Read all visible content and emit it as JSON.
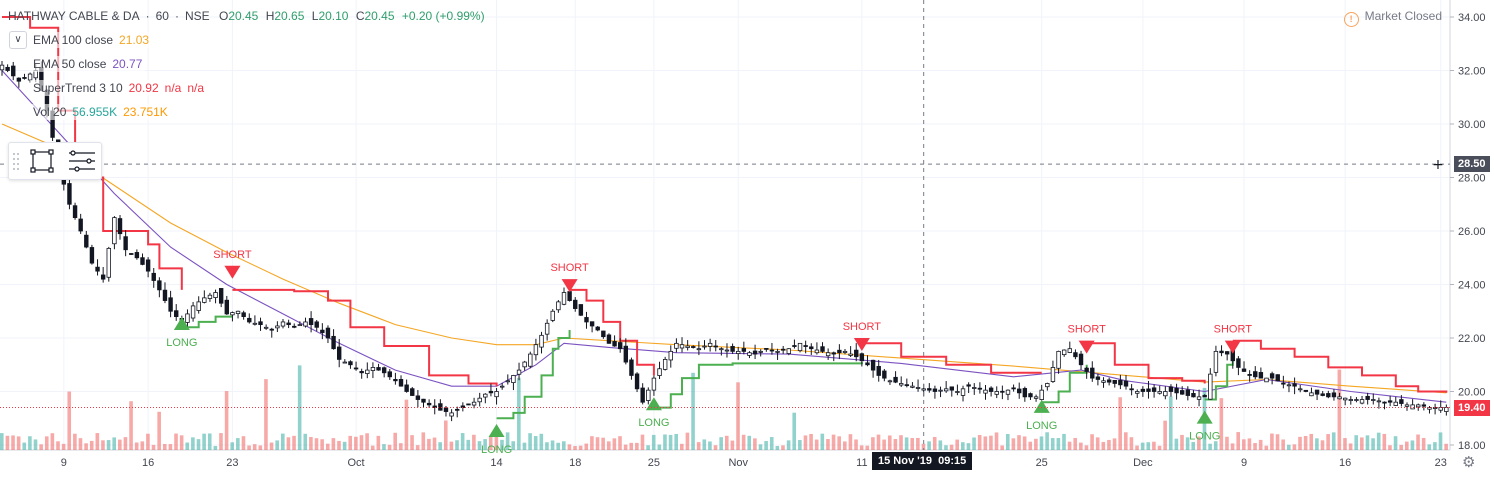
{
  "header": {
    "symbol": "HATHWAY CABLE & DA",
    "interval": "60",
    "exchange": "NSE",
    "separator": "·",
    "open_label": "O",
    "open": "20.45",
    "high_label": "H",
    "high": "20.65",
    "low_label": "L",
    "low": "20.10",
    "close_label": "C",
    "close": "20.45",
    "change": "+0.20 (+0.99%)",
    "market_status": "Market Closed",
    "market_icon": "!"
  },
  "legend": {
    "ema100": {
      "label": "EMA 100 close",
      "value": "21.03",
      "color": "#f5a623"
    },
    "ema50": {
      "label": "EMA 50 close",
      "value": "20.77",
      "color": "#7b52c1"
    },
    "supertrend": {
      "label": "SuperTrend 3 10",
      "value": "20.92",
      "extra1": "n/a",
      "extra2": "n/a",
      "color": "#f23645"
    },
    "volume": {
      "label": "Vol 20",
      "value": "56.955K",
      "ma": "23.751K",
      "value_color": "#26a69a",
      "ma_color": "#ff9800"
    }
  },
  "price_tags": {
    "crosshair": "28.50",
    "last": "19.40"
  },
  "crosshair_date": "15 Nov '19",
  "crosshair_time": "09:15",
  "colors": {
    "up": "#26a69a",
    "down": "#ef5350",
    "candle_body": "#000000",
    "supertrend_up": "#4caf50",
    "supertrend_down": "#f23645",
    "ema100": "#f5a623",
    "ema50": "#7b52c1",
    "last_price": "#f23645",
    "crosshair_tag": "#4a4e5a"
  },
  "chart_data": {
    "type": "line",
    "y_axis": {
      "min": 18,
      "max": 34,
      "ticks": [
        "18.00",
        "20.00",
        "22.00",
        "24.00",
        "26.00",
        "28.00",
        "30.00",
        "32.00",
        "34.00"
      ]
    },
    "x_ticks": [
      {
        "label": "9",
        "i": 11
      },
      {
        "label": "16",
        "i": 26
      },
      {
        "label": "23",
        "i": 41
      },
      {
        "label": "Oct",
        "i": 63
      },
      {
        "label": "14",
        "i": 88
      },
      {
        "label": "18",
        "i": 102
      },
      {
        "label": "25",
        "i": 116
      },
      {
        "label": "Nov",
        "i": 131
      },
      {
        "label": "11",
        "i": 153
      },
      {
        "label": "25",
        "i": 185
      },
      {
        "label": "Dec",
        "i": 203
      },
      {
        "label": "9",
        "i": 221
      },
      {
        "label": "16",
        "i": 239
      },
      {
        "label": "23",
        "i": 256
      }
    ],
    "bars": 258,
    "close_path": [
      [
        0,
        32.2
      ],
      [
        3,
        31.6
      ],
      [
        6,
        32.0
      ],
      [
        8,
        30.5
      ],
      [
        10,
        28.5
      ],
      [
        12,
        27.0
      ],
      [
        14,
        26.0
      ],
      [
        16,
        24.8
      ],
      [
        18,
        24.2
      ],
      [
        20,
        26.5
      ],
      [
        22,
        25.3
      ],
      [
        24,
        25.0
      ],
      [
        26,
        24.5
      ],
      [
        28,
        23.8
      ],
      [
        30,
        23.0
      ],
      [
        32,
        22.6
      ],
      [
        34,
        23.2
      ],
      [
        36,
        23.5
      ],
      [
        38,
        23.7
      ],
      [
        40,
        22.9
      ],
      [
        42,
        23.0
      ],
      [
        44,
        22.6
      ],
      [
        46,
        22.5
      ],
      [
        48,
        22.3
      ],
      [
        50,
        22.6
      ],
      [
        52,
        22.4
      ],
      [
        54,
        22.6
      ],
      [
        56,
        22.4
      ],
      [
        58,
        22.0
      ],
      [
        60,
        21.2
      ],
      [
        62,
        21.0
      ],
      [
        64,
        20.7
      ],
      [
        66,
        20.9
      ],
      [
        68,
        20.7
      ],
      [
        70,
        20.4
      ],
      [
        72,
        20.0
      ],
      [
        74,
        19.7
      ],
      [
        76,
        19.5
      ],
      [
        78,
        19.3
      ],
      [
        80,
        19.2
      ],
      [
        82,
        19.4
      ],
      [
        84,
        19.6
      ],
      [
        86,
        19.9
      ],
      [
        88,
        20.0
      ],
      [
        90,
        20.4
      ],
      [
        92,
        20.8
      ],
      [
        94,
        21.4
      ],
      [
        96,
        22.1
      ],
      [
        98,
        23.0
      ],
      [
        100,
        23.7
      ],
      [
        102,
        23.1
      ],
      [
        104,
        22.6
      ],
      [
        106,
        22.3
      ],
      [
        108,
        21.8
      ],
      [
        110,
        21.6
      ],
      [
        112,
        20.6
      ],
      [
        114,
        19.6
      ],
      [
        116,
        20.5
      ],
      [
        118,
        21.2
      ],
      [
        120,
        21.8
      ],
      [
        122,
        21.7
      ],
      [
        124,
        21.6
      ],
      [
        126,
        21.8
      ],
      [
        128,
        21.6
      ],
      [
        130,
        21.5
      ],
      [
        132,
        21.5
      ],
      [
        134,
        21.4
      ],
      [
        136,
        21.6
      ],
      [
        138,
        21.5
      ],
      [
        140,
        21.6
      ],
      [
        142,
        21.8
      ],
      [
        144,
        21.6
      ],
      [
        146,
        21.5
      ],
      [
        148,
        21.4
      ],
      [
        150,
        21.5
      ],
      [
        152,
        21.3
      ],
      [
        154,
        21.0
      ],
      [
        156,
        20.6
      ],
      [
        158,
        20.4
      ],
      [
        160,
        20.3
      ],
      [
        162,
        20.2
      ],
      [
        164,
        20.1
      ],
      [
        166,
        20.0
      ],
      [
        168,
        20.1
      ],
      [
        170,
        20.0
      ],
      [
        172,
        20.2
      ],
      [
        174,
        20.1
      ],
      [
        176,
        20.0
      ],
      [
        178,
        20.0
      ],
      [
        180,
        20.1
      ],
      [
        182,
        19.8
      ],
      [
        184,
        19.8
      ],
      [
        186,
        20.3
      ],
      [
        188,
        21.5
      ],
      [
        190,
        21.6
      ],
      [
        192,
        21.0
      ],
      [
        194,
        20.5
      ],
      [
        196,
        20.4
      ],
      [
        198,
        20.3
      ],
      [
        200,
        20.2
      ],
      [
        202,
        20.0
      ],
      [
        204,
        20.0
      ],
      [
        206,
        20.0
      ],
      [
        208,
        20.0
      ],
      [
        210,
        19.9
      ],
      [
        212,
        19.8
      ],
      [
        214,
        19.8
      ],
      [
        216,
        21.5
      ],
      [
        218,
        21.4
      ],
      [
        220,
        20.9
      ],
      [
        222,
        20.6
      ],
      [
        224,
        20.5
      ],
      [
        226,
        20.5
      ],
      [
        228,
        20.3
      ],
      [
        230,
        20.2
      ],
      [
        232,
        20.0
      ],
      [
        234,
        19.9
      ],
      [
        236,
        19.8
      ],
      [
        238,
        19.8
      ],
      [
        240,
        19.7
      ],
      [
        242,
        19.7
      ],
      [
        244,
        19.7
      ],
      [
        246,
        19.6
      ],
      [
        248,
        19.6
      ],
      [
        250,
        19.5
      ],
      [
        252,
        19.5
      ],
      [
        254,
        19.4
      ],
      [
        257,
        19.4
      ]
    ],
    "ema100_path": [
      [
        0,
        30.0
      ],
      [
        10,
        29.1
      ],
      [
        20,
        27.7
      ],
      [
        30,
        26.3
      ],
      [
        40,
        25.2
      ],
      [
        50,
        24.2
      ],
      [
        60,
        23.3
      ],
      [
        70,
        22.5
      ],
      [
        80,
        22.0
      ],
      [
        88,
        21.75
      ],
      [
        95,
        21.75
      ],
      [
        100,
        22.0
      ],
      [
        108,
        21.9
      ],
      [
        120,
        21.75
      ],
      [
        140,
        21.55
      ],
      [
        160,
        21.25
      ],
      [
        180,
        20.95
      ],
      [
        200,
        20.6
      ],
      [
        214,
        20.35
      ],
      [
        225,
        20.45
      ],
      [
        240,
        20.2
      ],
      [
        257,
        19.95
      ]
    ],
    "ema50_path": [
      [
        0,
        32.0
      ],
      [
        10,
        29.7
      ],
      [
        20,
        27.4
      ],
      [
        30,
        25.4
      ],
      [
        40,
        24.0
      ],
      [
        50,
        22.9
      ],
      [
        60,
        21.8
      ],
      [
        70,
        20.8
      ],
      [
        80,
        20.2
      ],
      [
        88,
        20.2
      ],
      [
        95,
        21.0
      ],
      [
        100,
        21.8
      ],
      [
        108,
        21.65
      ],
      [
        120,
        21.45
      ],
      [
        140,
        21.4
      ],
      [
        160,
        21.05
      ],
      [
        180,
        20.55
      ],
      [
        192,
        20.8
      ],
      [
        200,
        20.4
      ],
      [
        214,
        20.0
      ],
      [
        225,
        20.45
      ],
      [
        240,
        20.0
      ],
      [
        257,
        19.6
      ]
    ],
    "supertrend_segments": [
      {
        "trend": "down",
        "points": [
          [
            0,
            34.0
          ],
          [
            5,
            33.6
          ],
          [
            10,
            30.5
          ],
          [
            13,
            28.0
          ],
          [
            18,
            26.0
          ],
          [
            21,
            26.0
          ],
          [
            26,
            25.5
          ],
          [
            28,
            24.6
          ],
          [
            32,
            23.8
          ]
        ]
      },
      {
        "trend": "up",
        "points": [
          [
            32,
            22.4
          ],
          [
            35,
            22.6
          ],
          [
            38,
            22.8
          ],
          [
            41,
            22.8
          ]
        ]
      },
      {
        "trend": "down",
        "points": [
          [
            41,
            23.8
          ],
          [
            52,
            23.75
          ],
          [
            58,
            23.4
          ],
          [
            62,
            22.4
          ],
          [
            68,
            21.7
          ],
          [
            76,
            20.6
          ],
          [
            83,
            20.3
          ],
          [
            88,
            20.2
          ]
        ]
      },
      {
        "trend": "up",
        "points": [
          [
            88,
            19.0
          ],
          [
            91,
            19.2
          ],
          [
            93,
            19.8
          ],
          [
            96,
            20.6
          ],
          [
            98,
            21.6
          ],
          [
            99,
            22.0
          ],
          [
            101,
            22.3
          ]
        ]
      },
      {
        "trend": "down",
        "points": [
          [
            101,
            23.8
          ],
          [
            104,
            23.4
          ],
          [
            107,
            22.6
          ],
          [
            110,
            21.9
          ],
          [
            113,
            21.0
          ],
          [
            116,
            20.6
          ]
        ]
      },
      {
        "trend": "up",
        "points": [
          [
            116,
            19.4
          ],
          [
            119,
            19.9
          ],
          [
            121,
            20.5
          ],
          [
            124,
            21.0
          ],
          [
            130,
            21.05
          ],
          [
            140,
            21.05
          ],
          [
            150,
            21.05
          ],
          [
            153,
            21.1
          ]
        ]
      },
      {
        "trend": "down",
        "points": [
          [
            153,
            21.8
          ],
          [
            160,
            21.3
          ],
          [
            168,
            21.0
          ],
          [
            176,
            20.7
          ],
          [
            185,
            20.7
          ]
        ]
      },
      {
        "trend": "up",
        "points": [
          [
            185,
            19.6
          ],
          [
            188,
            20.0
          ],
          [
            190,
            20.7
          ],
          [
            193,
            21.0
          ]
        ]
      },
      {
        "trend": "down",
        "points": [
          [
            193,
            21.8
          ],
          [
            198,
            21.0
          ],
          [
            204,
            20.5
          ],
          [
            210,
            20.4
          ],
          [
            214,
            20.3
          ]
        ]
      },
      {
        "trend": "up",
        "points": [
          [
            214,
            19.7
          ],
          [
            216,
            20.2
          ],
          [
            218,
            21.0
          ],
          [
            219,
            21.3
          ]
        ]
      },
      {
        "trend": "down",
        "points": [
          [
            219,
            21.9
          ],
          [
            224,
            21.6
          ],
          [
            230,
            21.3
          ],
          [
            236,
            20.9
          ],
          [
            242,
            20.6
          ],
          [
            248,
            20.2
          ],
          [
            252,
            20.0
          ],
          [
            257,
            19.95
          ]
        ]
      }
    ],
    "signals": [
      {
        "type": "short",
        "label": "SHORT",
        "i": 41,
        "price": 24.7
      },
      {
        "type": "long",
        "label": "LONG",
        "i": 32,
        "price": 22.3
      },
      {
        "type": "short",
        "label": "SHORT",
        "i": 101,
        "price": 24.2
      },
      {
        "type": "long",
        "label": "LONG",
        "i": 88,
        "price": 18.3
      },
      {
        "type": "short",
        "label": "SHORT",
        "i": 153,
        "price": 22.0
      },
      {
        "type": "long",
        "label": "LONG",
        "i": 116,
        "price": 19.3
      },
      {
        "type": "short",
        "label": "SHORT",
        "i": 193,
        "price": 21.9
      },
      {
        "type": "long",
        "label": "LONG",
        "i": 185,
        "price": 19.2
      },
      {
        "type": "short",
        "label": "SHORT",
        "i": 219,
        "price": 21.9
      },
      {
        "type": "long",
        "label": "LONG",
        "i": 214,
        "price": 18.8
      }
    ],
    "crosshair_price": 28.5,
    "crosshair_i": 164,
    "last_price": 19.4
  }
}
